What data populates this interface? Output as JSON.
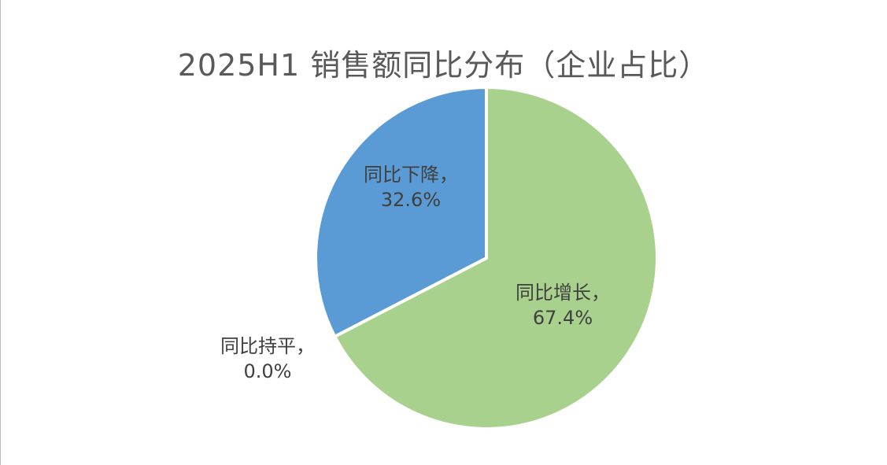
{
  "chart_data": {
    "type": "pie",
    "title": "2025H1 销售额同比分布（企业占比）",
    "slices": [
      {
        "name": "同比增长",
        "value": 67.4,
        "label": "67.4%",
        "color": "#A9D18E"
      },
      {
        "name": "同比持平",
        "value": 0.0,
        "label": "0.0%",
        "color": "#A5A5A5"
      },
      {
        "name": "同比下降",
        "value": 32.6,
        "label": "32.6%",
        "color": "#5B9BD5"
      }
    ],
    "start_angle": "12 o'clock",
    "direction": "clockwise",
    "legend": "none",
    "label_separator": "，"
  }
}
